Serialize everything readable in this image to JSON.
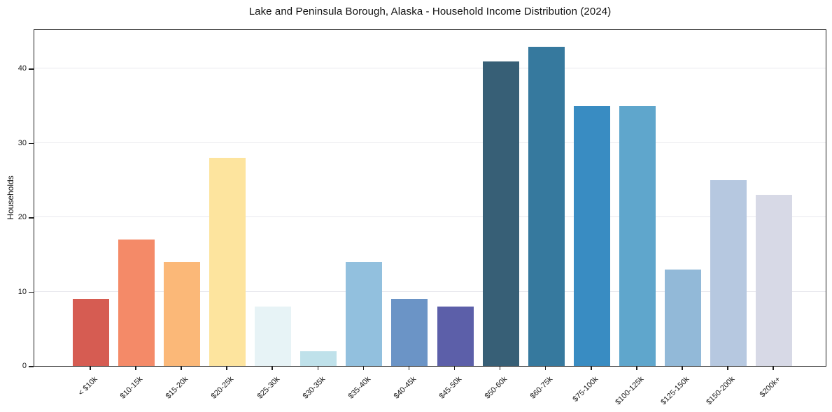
{
  "chart_data": {
    "type": "bar",
    "title": "Lake and Peninsula Borough, Alaska - Household Income Distribution (2024)",
    "xlabel": "",
    "ylabel": "Households",
    "categories": [
      "< $10k",
      "$10-15k",
      "$15-20k",
      "$20-25k",
      "$25-30k",
      "$30-35k",
      "$35-40k",
      "$40-45k",
      "$45-50k",
      "$50-60k",
      "$60-75k",
      "$75-100k",
      "$100-125k",
      "$125-150k",
      "$150-200k",
      "$200k+"
    ],
    "values": [
      9,
      17,
      14,
      28,
      8,
      2,
      14,
      9,
      8,
      41,
      43,
      35,
      35,
      13,
      25,
      23
    ],
    "bar_colors": [
      "#d65c52",
      "#f48a68",
      "#fbb878",
      "#fde49e",
      "#e7f3f6",
      "#bfe1ea",
      "#92c0de",
      "#6b94c6",
      "#5c5fa9",
      "#375f76",
      "#36799e",
      "#398cc2",
      "#5fa6cc",
      "#92b9d8",
      "#b6c8e0",
      "#d7d9e6"
    ],
    "yticks": [
      0,
      10,
      20,
      30,
      40
    ],
    "ylim": [
      0,
      45.4
    ],
    "grid": true,
    "legend": false,
    "x_tick_rotation_deg": 45
  },
  "colors": {
    "background": "#ffffff",
    "spine": "#1f1f1f",
    "grid": "#e9e9ee",
    "text": "#1a1a1a"
  }
}
